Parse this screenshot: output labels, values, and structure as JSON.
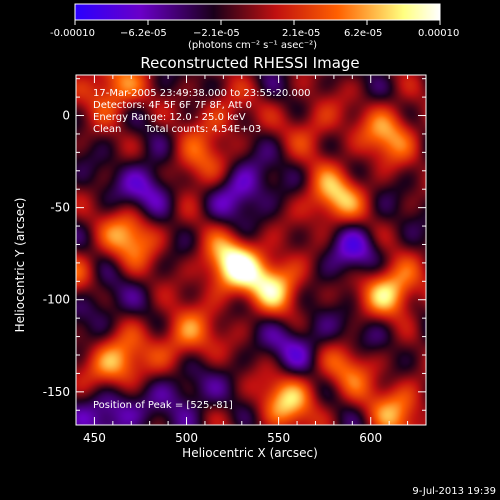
{
  "chart_data": {
    "type": "heatmap",
    "title": "Reconstructed RHESSI Image",
    "xlabel": "Heliocentric X (arcsec)",
    "ylabel": "Heliocentric Y (arcsec)",
    "xlim": [
      440,
      630
    ],
    "ylim": [
      -168,
      22
    ],
    "xticks": [
      450,
      500,
      550,
      600
    ],
    "yticks": [
      0,
      -50,
      -100,
      -150
    ],
    "colorbar": {
      "min": -0.0001,
      "max": 0.0001,
      "tick_labels": [
        "-0.00010",
        "−6.2e-05",
        "−2.1e-05",
        "2.1e-05",
        "6.2e-05",
        "0.00010"
      ],
      "unit_label": "(photons cm⁻² s⁻¹ asec⁻²)",
      "colors": [
        "#2a00ff",
        "#6a00c8",
        "#1a001a",
        "#c01010",
        "#ff6000",
        "#ffff80",
        "#ffffff"
      ]
    },
    "annotations": {
      "time_range": "17-Mar-2005 23:49:38.000 to 23:55:20.000",
      "detectors": "Detectors: 4F 5F 6F 7F 8F, Att 0",
      "energy_range": "Energy Range: 12.0 - 25.0 keV",
      "algorithm": "Clean",
      "total_counts": "Total counts: 4.54E+03",
      "peak": "Position of Peak = [525,-81]"
    },
    "peak_position": [
      525,
      -81
    ],
    "sources": [
      {
        "x": 525,
        "y": -81,
        "amp": 1.0
      },
      {
        "x": 580,
        "y": -45,
        "amp": 0.75
      },
      {
        "x": 548,
        "y": -92,
        "amp": 0.78
      },
      {
        "x": 610,
        "y": -95,
        "amp": 0.9
      },
      {
        "x": 462,
        "y": -135,
        "amp": 0.82
      },
      {
        "x": 470,
        "y": -65,
        "amp": 0.7
      },
      {
        "x": 505,
        "y": -28,
        "amp": 0.55
      },
      {
        "x": 610,
        "y": -10,
        "amp": 0.65
      },
      {
        "x": 555,
        "y": -155,
        "amp": 0.72
      },
      {
        "x": 590,
        "y": -135,
        "amp": 0.55
      },
      {
        "x": 500,
        "y": -120,
        "amp": 0.6
      },
      {
        "x": 460,
        "y": 15,
        "amp": 0.65
      },
      {
        "x": 520,
        "y": 0,
        "amp": 0.35
      },
      {
        "x": 615,
        "y": -160,
        "amp": 0.6
      },
      {
        "x": 570,
        "y": -5,
        "amp": 0.35
      },
      {
        "x": 440,
        "y": -90,
        "amp": 0.45
      },
      {
        "x": 480,
        "y": -40,
        "amp": -0.55
      },
      {
        "x": 530,
        "y": -40,
        "amp": -0.5
      },
      {
        "x": 590,
        "y": -75,
        "amp": -0.45
      },
      {
        "x": 460,
        "y": -160,
        "amp": -0.55
      },
      {
        "x": 560,
        "y": -125,
        "amp": -0.4
      },
      {
        "x": 500,
        "y": -150,
        "amp": -0.35
      },
      {
        "x": 450,
        "y": -100,
        "amp": -0.4
      },
      {
        "x": 600,
        "y": -120,
        "amp": -0.3
      }
    ]
  },
  "footer": {
    "timestamp": "9-Jul-2013 19:39"
  }
}
